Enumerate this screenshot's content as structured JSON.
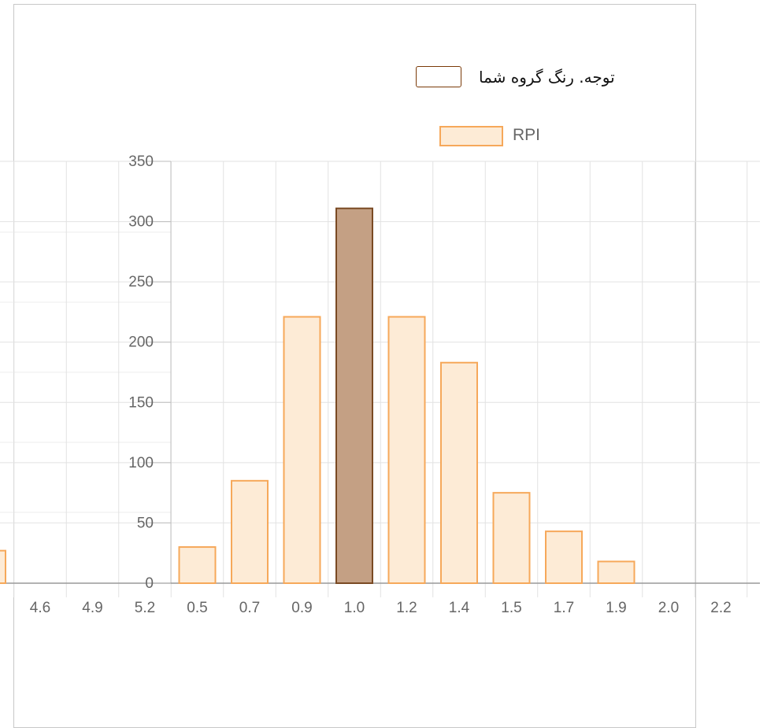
{
  "note": {
    "text": "توجه. رنگ گروه شما"
  },
  "colors": {
    "bar_fill": "#fdebd6",
    "bar_stroke": "#f6a85a",
    "highlight_fill": "#c4a084",
    "highlight_stroke": "#7a4a24",
    "grid": "#e2e2e2",
    "tick_text": "#666666"
  },
  "chart_data": {
    "type": "bar",
    "categories": [
      "4.6",
      "4.9",
      "5.2",
      "0.5",
      "0.7",
      "0.9",
      "1.0",
      "1.2",
      "1.4",
      "1.5",
      "1.7",
      "1.9",
      "2.0",
      "2.2"
    ],
    "series": [
      {
        "name": "RPI",
        "values": [
          0,
          0,
          0,
          30,
          85,
          221,
          311,
          221,
          183,
          75,
          43,
          18,
          0,
          0
        ]
      }
    ],
    "partial_left_bar_value": 27,
    "highlight_category": "1.0",
    "yticks": [
      "0",
      "50",
      "100",
      "150",
      "200",
      "250",
      "300",
      "350"
    ],
    "ylim": [
      0,
      350
    ],
    "legend_position": "top",
    "grid": true
  }
}
